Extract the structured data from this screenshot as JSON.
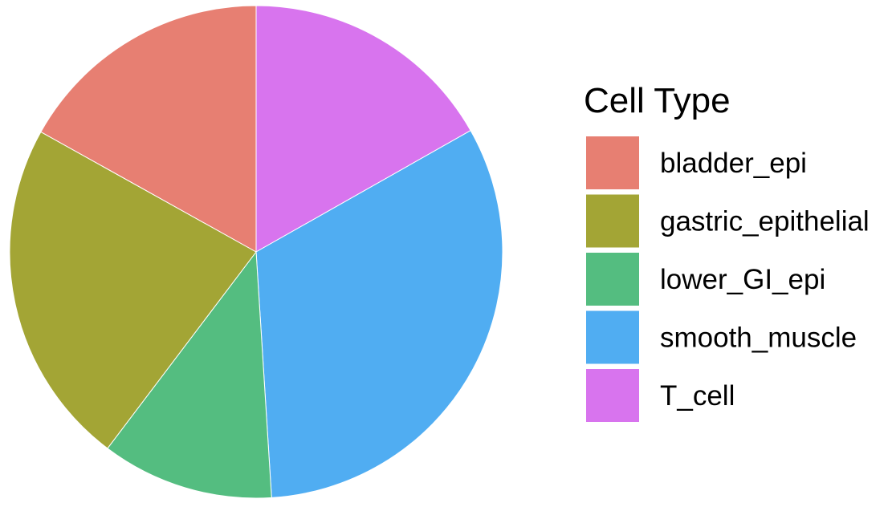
{
  "chart_data": {
    "type": "pie",
    "title": "",
    "legend_title": "Cell Type",
    "legend_position": "right",
    "start_angle_deg": 0,
    "direction": "clockwise",
    "slices": [
      {
        "label": "T_cell",
        "value": 16.8,
        "color": "#D874EE"
      },
      {
        "label": "smooth_muscle",
        "value": 32.2,
        "color": "#50ADF2"
      },
      {
        "label": "lower_GI_epi",
        "value": 11.3,
        "color": "#54BD80"
      },
      {
        "label": "gastric_epithelial",
        "value": 22.8,
        "color": "#A3A535"
      },
      {
        "label": "bladder_epi",
        "value": 16.9,
        "color": "#E77F72"
      }
    ],
    "legend_order": [
      "bladder_epi",
      "gastric_epithelial",
      "lower_GI_epi",
      "smooth_muscle",
      "T_cell"
    ]
  }
}
